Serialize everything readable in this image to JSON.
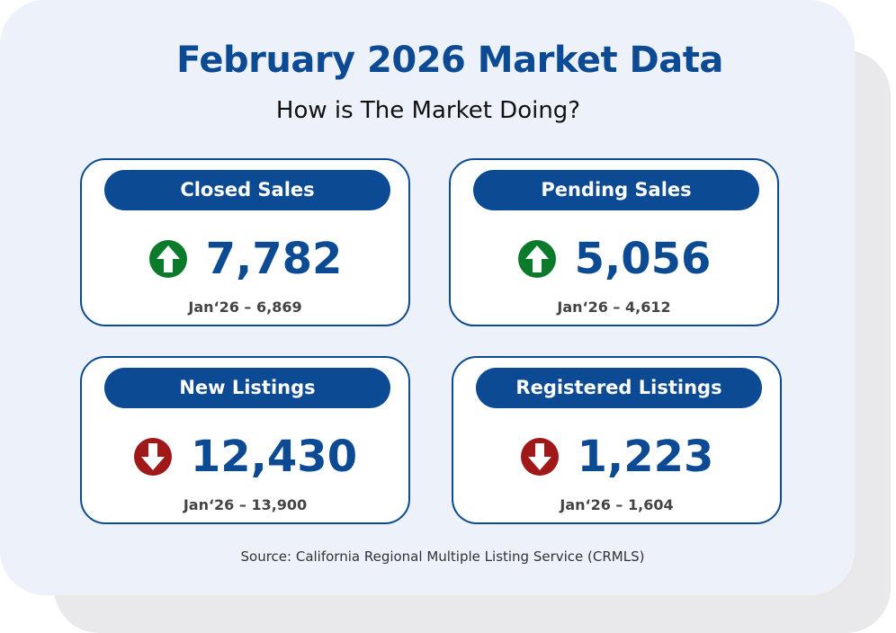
{
  "header": {
    "title": "February 2026 Market Data",
    "subtitle": "How is The Market Doing?"
  },
  "cards": [
    {
      "label": "Closed Sales",
      "value": "7,782",
      "trend": "up",
      "comparison": "Jan‘26 – 6,869"
    },
    {
      "label": "Pending Sales",
      "value": "5,056",
      "trend": "up",
      "comparison": "Jan‘26 – 4,612"
    },
    {
      "label": "New Listings",
      "value": "12,430",
      "trend": "down",
      "comparison": "Jan‘26 – 13,900"
    },
    {
      "label": "Registered Listings",
      "value": "1,223",
      "trend": "down",
      "comparison": "Jan‘26 – 1,604"
    }
  ],
  "footer": {
    "source": "Source: California Regional Multiple Listing Service (CRMLS)"
  }
}
